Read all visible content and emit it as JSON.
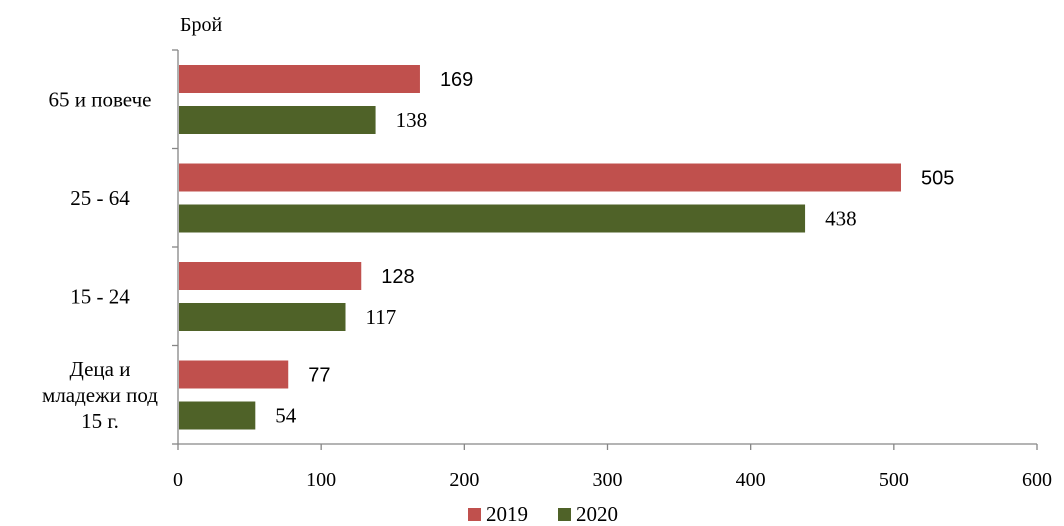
{
  "chart_data": {
    "type": "bar",
    "orientation": "horizontal",
    "ylabel": "Брой",
    "categories": [
      "65 и повече",
      "25 - 64",
      "15 - 24",
      "Деца и младежи под 15 г."
    ],
    "category_lines": [
      [
        "65 и повече"
      ],
      [
        "25 - 64"
      ],
      [
        "15 - 24"
      ],
      [
        "Деца и",
        "младежи под",
        "15 г."
      ]
    ],
    "series": [
      {
        "name": "2019",
        "color": "#c0504d",
        "values": [
          169,
          505,
          128,
          77
        ]
      },
      {
        "name": "2020",
        "color": "#4f6228",
        "values": [
          138,
          438,
          117,
          54
        ]
      }
    ],
    "xlim": [
      0,
      600
    ],
    "xticks": [
      "0",
      "100",
      "200",
      "300",
      "400",
      "500",
      "600"
    ],
    "grid": false,
    "legend_position": "bottom"
  }
}
